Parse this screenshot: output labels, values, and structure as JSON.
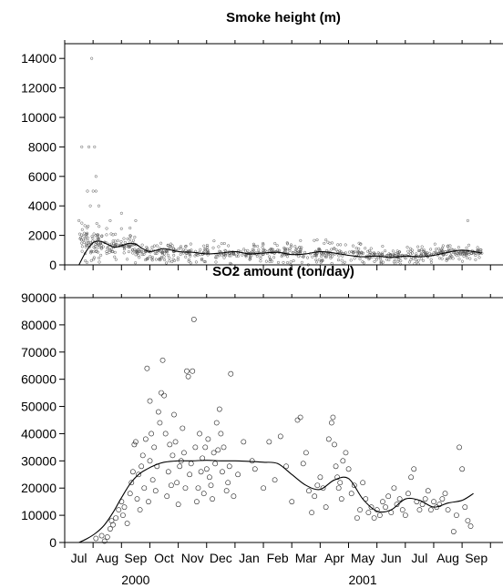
{
  "chart_data": [
    {
      "type": "scatter",
      "title": "Smoke height  (m)",
      "ylim": [
        0,
        15000
      ],
      "y_ticks": [
        0,
        2000,
        4000,
        6000,
        8000,
        10000,
        12000,
        14000
      ],
      "x_domain_months": [
        0,
        15.2
      ],
      "series": [
        {
          "marker": "circle",
          "note_points": "daily observations",
          "points": [
            [
              1.1,
              8000
            ],
            [
              1.35,
              8000
            ],
            [
              1.55,
              8000
            ],
            [
              1.45,
              14000
            ],
            [
              1.5,
              5000
            ],
            [
              1.6,
              6000
            ],
            [
              1.6,
              5000
            ],
            [
              1.3,
              5000
            ],
            [
              1.4,
              4000
            ],
            [
              1.7,
              4000
            ],
            [
              2.5,
              3500
            ],
            [
              2.1,
              3000
            ],
            [
              3.0,
              3000
            ],
            [
              2.8,
              2500
            ],
            [
              1.0,
              3000
            ],
            [
              0.1,
              1500
            ],
            [
              0.3,
              1500
            ],
            [
              0.2,
              1000
            ],
            [
              14.7,
              3000
            ]
          ],
          "cloud": [
            {
              "x0": 1.0,
              "x1": 2.0,
              "n": 90,
              "y_mean": 1500,
              "y_spread": 1300
            },
            {
              "x0": 2.0,
              "x1": 3.0,
              "n": 70,
              "y_mean": 1300,
              "y_spread": 1000
            },
            {
              "x0": 3.0,
              "x1": 5.0,
              "n": 120,
              "y_mean": 900,
              "y_spread": 700
            },
            {
              "x0": 5.0,
              "x1": 8.0,
              "n": 150,
              "y_mean": 800,
              "y_spread": 700
            },
            {
              "x0": 8.0,
              "x1": 11.0,
              "n": 160,
              "y_mean": 800,
              "y_spread": 800
            },
            {
              "x0": 11.0,
              "x1": 13.5,
              "n": 140,
              "y_mean": 600,
              "y_spread": 600
            },
            {
              "x0": 13.5,
              "x1": 15.2,
              "n": 110,
              "y_mean": 800,
              "y_spread": 600
            }
          ]
        },
        {
          "type": "line",
          "curve": true,
          "x": [
            1.0,
            1.25,
            1.5,
            1.75,
            2.0,
            2.25,
            2.5,
            2.75,
            3.0,
            3.25,
            3.5,
            3.75,
            4.0,
            4.5,
            5.0,
            5.5,
            6.0,
            6.5,
            7.0,
            7.5,
            8.0,
            8.5,
            9.0,
            9.5,
            10.0,
            10.5,
            11.0,
            11.5,
            12.0,
            12.5,
            13.0,
            13.5,
            14.0,
            14.5,
            15.2
          ],
          "y": [
            0,
            900,
            1500,
            1600,
            1400,
            1200,
            1300,
            1450,
            1400,
            1100,
            900,
            1000,
            1100,
            900,
            850,
            750,
            800,
            900,
            750,
            800,
            850,
            700,
            750,
            900,
            800,
            650,
            550,
            600,
            500,
            600,
            550,
            650,
            850,
            1000,
            800
          ]
        }
      ]
    },
    {
      "type": "scatter",
      "title": "SO2 amount  (ton/day)",
      "ylim": [
        0,
        90000
      ],
      "y_ticks": [
        0,
        10000,
        20000,
        30000,
        40000,
        50000,
        60000,
        70000,
        80000,
        90000
      ],
      "x_tick_labels": [
        "Jul",
        "Aug",
        "Sep",
        "Oct",
        "Nov",
        "Dec",
        "Jan",
        "Feb",
        "Mar",
        "Apr",
        "May",
        "Jun",
        "Jul",
        "Aug",
        "Sep"
      ],
      "x_year_labels": [
        {
          "label": "2000",
          "x": 2.5
        },
        {
          "label": "2001",
          "x": 10.5
        }
      ],
      "series": [
        {
          "marker": "circle",
          "points": [
            [
              1.6,
              1500
            ],
            [
              1.8,
              2500
            ],
            [
              1.9,
              500
            ],
            [
              2.0,
              2000
            ],
            [
              2.1,
              5000
            ],
            [
              2.15,
              8000
            ],
            [
              2.2,
              6500
            ],
            [
              2.3,
              9000
            ],
            [
              2.4,
              12000
            ],
            [
              2.5,
              15000
            ],
            [
              2.55,
              10000
            ],
            [
              2.6,
              13000
            ],
            [
              2.7,
              7000
            ],
            [
              2.8,
              18000
            ],
            [
              2.85,
              22000
            ],
            [
              2.9,
              26000
            ],
            [
              2.95,
              36000
            ],
            [
              3.0,
              37000
            ],
            [
              3.05,
              16000
            ],
            [
              3.1,
              25000
            ],
            [
              3.15,
              12000
            ],
            [
              3.2,
              28000
            ],
            [
              3.25,
              32000
            ],
            [
              3.3,
              20000
            ],
            [
              3.35,
              38000
            ],
            [
              3.4,
              64000
            ],
            [
              3.45,
              15000
            ],
            [
              3.5,
              30000
            ],
            [
              3.5,
              52000
            ],
            [
              3.55,
              40000
            ],
            [
              3.6,
              23000
            ],
            [
              3.65,
              35000
            ],
            [
              3.7,
              19000
            ],
            [
              3.75,
              28000
            ],
            [
              3.8,
              48000
            ],
            [
              3.85,
              44000
            ],
            [
              3.9,
              55000
            ],
            [
              3.95,
              67000
            ],
            [
              4.0,
              54000
            ],
            [
              4.05,
              40000
            ],
            [
              4.1,
              17000
            ],
            [
              4.15,
              26000
            ],
            [
              4.2,
              36000
            ],
            [
              4.25,
              21000
            ],
            [
              4.3,
              32000
            ],
            [
              4.35,
              47000
            ],
            [
              4.4,
              37000
            ],
            [
              4.45,
              22000
            ],
            [
              4.5,
              14000
            ],
            [
              4.55,
              28000
            ],
            [
              4.6,
              30000
            ],
            [
              4.65,
              42000
            ],
            [
              4.7,
              33000
            ],
            [
              4.75,
              20000
            ],
            [
              4.8,
              63000
            ],
            [
              4.85,
              61000
            ],
            [
              4.9,
              25000
            ],
            [
              4.95,
              29000
            ],
            [
              5.0,
              63000
            ],
            [
              5.05,
              82000
            ],
            [
              5.1,
              35000
            ],
            [
              5.15,
              15000
            ],
            [
              5.2,
              20000
            ],
            [
              5.25,
              40000
            ],
            [
              5.3,
              26000
            ],
            [
              5.35,
              31000
            ],
            [
              5.4,
              18000
            ],
            [
              5.45,
              35000
            ],
            [
              5.5,
              27000
            ],
            [
              5.55,
              38000
            ],
            [
              5.6,
              24000
            ],
            [
              5.65,
              21000
            ],
            [
              5.7,
              16000
            ],
            [
              5.75,
              33000
            ],
            [
              5.8,
              29000
            ],
            [
              5.85,
              44000
            ],
            [
              5.9,
              34000
            ],
            [
              5.95,
              49000
            ],
            [
              6.0,
              40000
            ],
            [
              6.05,
              26000
            ],
            [
              6.1,
              35000
            ],
            [
              6.2,
              19000
            ],
            [
              6.25,
              22000
            ],
            [
              6.3,
              28000
            ],
            [
              6.35,
              62000
            ],
            [
              6.45,
              17000
            ],
            [
              6.6,
              25000
            ],
            [
              6.8,
              37000
            ],
            [
              7.1,
              30000
            ],
            [
              7.2,
              27000
            ],
            [
              7.5,
              20000
            ],
            [
              7.7,
              37000
            ],
            [
              7.9,
              23000
            ],
            [
              8.1,
              39000
            ],
            [
              8.3,
              28000
            ],
            [
              8.5,
              15000
            ],
            [
              8.7,
              45000
            ],
            [
              8.8,
              46000
            ],
            [
              8.9,
              29000
            ],
            [
              9.0,
              33000
            ],
            [
              9.1,
              19000
            ],
            [
              9.2,
              11000
            ],
            [
              9.3,
              17000
            ],
            [
              9.4,
              21000
            ],
            [
              9.5,
              24000
            ],
            [
              9.6,
              20000
            ],
            [
              9.7,
              13000
            ],
            [
              9.8,
              38000
            ],
            [
              9.9,
              44000
            ],
            [
              9.95,
              46000
            ],
            [
              10.0,
              36000
            ],
            [
              10.05,
              28000
            ],
            [
              10.1,
              24000
            ],
            [
              10.15,
              20000
            ],
            [
              10.2,
              22000
            ],
            [
              10.25,
              16000
            ],
            [
              10.3,
              30000
            ],
            [
              10.4,
              33000
            ],
            [
              10.5,
              27000
            ],
            [
              10.6,
              18000
            ],
            [
              10.7,
              21000
            ],
            [
              10.8,
              9000
            ],
            [
              10.9,
              12000
            ],
            [
              11.0,
              22000
            ],
            [
              11.1,
              16000
            ],
            [
              11.2,
              11000
            ],
            [
              11.3,
              13000
            ],
            [
              11.4,
              9000
            ],
            [
              11.5,
              12000
            ],
            [
              11.6,
              10000
            ],
            [
              11.7,
              15000
            ],
            [
              11.8,
              13000
            ],
            [
              11.9,
              17000
            ],
            [
              12.0,
              11000
            ],
            [
              12.1,
              20000
            ],
            [
              12.2,
              14000
            ],
            [
              12.3,
              16000
            ],
            [
              12.4,
              12000
            ],
            [
              12.5,
              10000
            ],
            [
              12.6,
              18000
            ],
            [
              12.7,
              24000
            ],
            [
              12.8,
              27000
            ],
            [
              12.9,
              15000
            ],
            [
              13.0,
              12000
            ],
            [
              13.1,
              14000
            ],
            [
              13.2,
              16000
            ],
            [
              13.3,
              19000
            ],
            [
              13.4,
              12000
            ],
            [
              13.5,
              15000
            ],
            [
              13.6,
              13000
            ],
            [
              13.7,
              14000
            ],
            [
              13.8,
              16000
            ],
            [
              13.9,
              18000
            ],
            [
              14.0,
              12000
            ],
            [
              14.2,
              4000
            ],
            [
              14.3,
              10000
            ],
            [
              14.4,
              35000
            ],
            [
              14.5,
              27000
            ],
            [
              14.6,
              13000
            ],
            [
              14.7,
              8000
            ],
            [
              14.8,
              6000
            ]
          ]
        },
        {
          "type": "line",
          "curve": true,
          "x": [
            1.0,
            1.3,
            1.6,
            1.9,
            2.2,
            2.5,
            2.8,
            3.1,
            3.4,
            3.7,
            4.0,
            4.5,
            5.0,
            5.5,
            6.0,
            6.5,
            7.0,
            7.5,
            8.0,
            8.5,
            9.0,
            9.5,
            10.0,
            10.5,
            11.0,
            11.5,
            12.0,
            12.5,
            13.0,
            13.5,
            14.0,
            14.5,
            14.9
          ],
          "y": [
            0,
            1500,
            3500,
            6500,
            11000,
            16500,
            21500,
            25000,
            27000,
            28500,
            29500,
            30000,
            30000,
            30200,
            30000,
            30000,
            29800,
            29500,
            29000,
            25000,
            21000,
            19500,
            23000,
            23500,
            16000,
            11500,
            12000,
            16000,
            15500,
            13000,
            14500,
            15500,
            18000
          ]
        }
      ]
    }
  ]
}
